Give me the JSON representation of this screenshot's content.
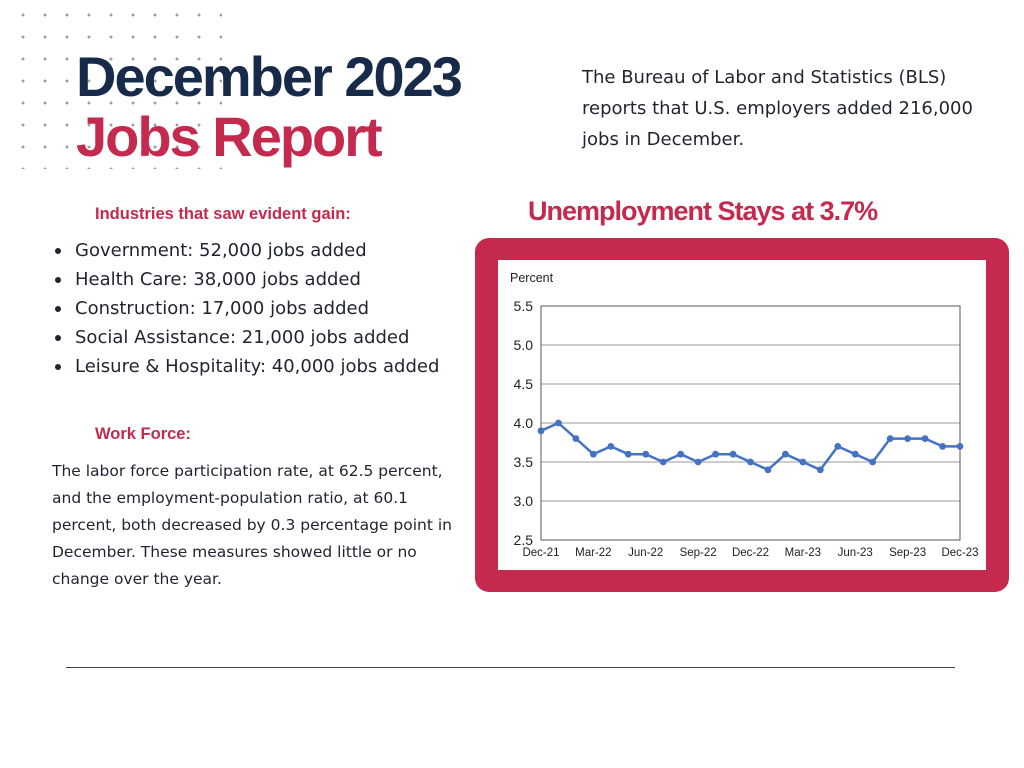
{
  "header": {
    "title_line1": "December 2023",
    "title_line2": "Jobs Report",
    "intro": "The Bureau of Labor and Statistics (BLS) reports that U.S. employers added 216,000 jobs in December."
  },
  "gains": {
    "heading": "Industries that saw evident gain:",
    "items": [
      "Government: 52,000 jobs added",
      "Health Care: 38,000 jobs added",
      "Construction: 17,000 jobs added",
      "Social Assistance: 21,000 jobs added",
      "Leisure & Hospitality: 40,000 jobs added"
    ]
  },
  "workforce": {
    "heading": "Work Force:",
    "text": "The labor force participation rate, at 62.5 percent, and the employment-population ratio, at 60.1 percent, both decreased by 0.3 percentage point in December. These measures showed little or no change over the year."
  },
  "colors": {
    "navy": "#172a4a",
    "accent": "#c52a4e",
    "line": "#4472c4"
  },
  "chart_data": {
    "type": "line",
    "title": "Unemployment Stays at 3.7%",
    "ylabel": "Percent",
    "xlabel": "",
    "ylim": [
      2.5,
      5.5
    ],
    "yticks": [
      "5.5",
      "5.0",
      "4.5",
      "4.0",
      "3.5",
      "3.0",
      "2.5"
    ],
    "ytick_values": [
      5.5,
      5.0,
      4.5,
      4.0,
      3.5,
      3.0,
      2.5
    ],
    "grid": true,
    "categories": [
      "Dec-21",
      "Jan-22",
      "Feb-22",
      "Mar-22",
      "Apr-22",
      "May-22",
      "Jun-22",
      "Jul-22",
      "Aug-22",
      "Sep-22",
      "Oct-22",
      "Nov-22",
      "Dec-22",
      "Jan-23",
      "Feb-23",
      "Mar-23",
      "Apr-23",
      "May-23",
      "Jun-23",
      "Jul-23",
      "Aug-23",
      "Sep-23",
      "Oct-23",
      "Nov-23",
      "Dec-23"
    ],
    "xtick_labels": [
      "Dec-21",
      "Mar-22",
      "Jun-22",
      "Sep-22",
      "Dec-22",
      "Mar-23",
      "Jun-23",
      "Sep-23",
      "Dec-23"
    ],
    "xtick_indices": [
      0,
      3,
      6,
      9,
      12,
      15,
      18,
      21,
      24
    ],
    "series": [
      {
        "name": "Unemployment rate",
        "values": [
          3.9,
          4.0,
          3.8,
          3.6,
          3.7,
          3.6,
          3.6,
          3.5,
          3.6,
          3.5,
          3.6,
          3.6,
          3.5,
          3.4,
          3.6,
          3.5,
          3.4,
          3.7,
          3.6,
          3.5,
          3.8,
          3.8,
          3.8,
          3.7,
          3.7
        ]
      }
    ]
  }
}
